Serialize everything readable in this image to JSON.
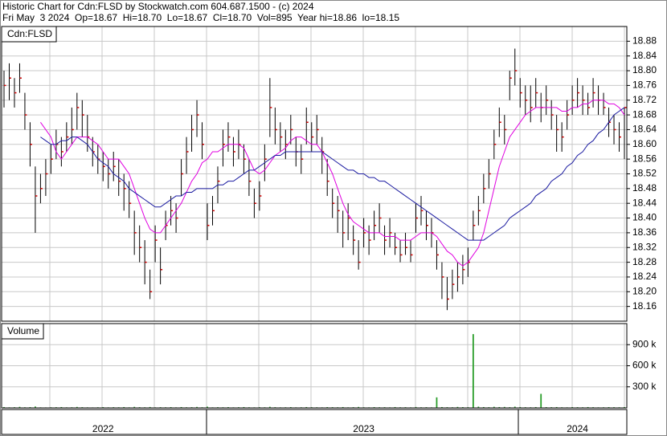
{
  "header": {
    "title": "Historic Chart for Cdn:FLSD by Stockwatch.com 604.687.1500 - (c) 2024",
    "subtitle": "Fri May  3 2024  Op=18.67  Hi=18.70  Lo=18.67  Cl=18.70  Vol=895  Year hi=18.86  lo=18.15"
  },
  "chart_data": [
    {
      "type": "ohlc",
      "title": "Cdn:FLSD",
      "bar_color": "#000000",
      "close_color": "#cc0000",
      "grid": true,
      "ylim": [
        18.12,
        18.92
      ],
      "yticks": [
        18.16,
        {
          "value": 18.2,
          "label": "18.20"
        },
        18.24,
        18.28,
        18.32,
        18.36,
        {
          "value": 18.4,
          "label": "18.40"
        },
        18.44,
        18.48,
        18.52,
        18.56,
        {
          "value": 18.6,
          "label": "18.60"
        },
        18.64,
        18.68,
        18.72,
        18.76,
        {
          "value": 18.8,
          "label": "18.80"
        },
        18.84,
        18.88
      ],
      "high": [
        18.8,
        18.82,
        18.78,
        18.82,
        18.74,
        18.66,
        18.54,
        18.52,
        18.56,
        18.6,
        18.64,
        18.62,
        18.66,
        18.7,
        18.74,
        18.72,
        18.68,
        18.62,
        18.6,
        18.58,
        18.56,
        18.58,
        18.56,
        18.52,
        18.5,
        18.42,
        18.38,
        18.34,
        18.26,
        18.38,
        18.32,
        18.42,
        18.46,
        18.44,
        18.56,
        18.62,
        18.68,
        18.72,
        18.66,
        18.44,
        18.46,
        18.54,
        18.64,
        18.66,
        18.62,
        18.64,
        18.6,
        18.56,
        18.48,
        18.5,
        18.6,
        18.78,
        18.7,
        18.66,
        18.64,
        18.68,
        18.62,
        18.6,
        18.7,
        18.66,
        18.68,
        18.62,
        18.56,
        18.48,
        18.46,
        18.42,
        18.44,
        18.38,
        18.34,
        18.4,
        18.38,
        18.42,
        18.44,
        18.38,
        18.4,
        18.36,
        18.34,
        18.36,
        18.34,
        18.44,
        18.46,
        18.42,
        18.4,
        18.34,
        18.28,
        18.24,
        18.26,
        18.28,
        18.3,
        18.32,
        18.42,
        18.46,
        18.52,
        18.56,
        18.64,
        18.7,
        18.68,
        18.8,
        18.86,
        18.78,
        18.76,
        18.76,
        18.78,
        18.74,
        18.76,
        18.72,
        18.68,
        18.66,
        18.72,
        18.76,
        18.78,
        18.76,
        18.74,
        18.78,
        18.76,
        18.74,
        18.7,
        18.68,
        18.66,
        18.7
      ],
      "low": [
        18.7,
        18.72,
        18.7,
        18.74,
        18.64,
        18.54,
        18.36,
        18.44,
        18.46,
        18.52,
        18.56,
        18.54,
        18.58,
        18.6,
        18.64,
        18.62,
        18.58,
        18.54,
        18.52,
        18.5,
        18.48,
        18.5,
        18.46,
        18.42,
        18.4,
        18.3,
        18.28,
        18.22,
        18.18,
        18.28,
        18.22,
        18.34,
        18.38,
        18.36,
        18.46,
        18.52,
        18.58,
        18.62,
        18.56,
        18.34,
        18.38,
        18.44,
        18.54,
        18.58,
        18.54,
        18.56,
        18.52,
        18.46,
        18.4,
        18.42,
        18.5,
        18.62,
        18.6,
        18.58,
        18.56,
        18.6,
        18.54,
        18.52,
        18.6,
        18.58,
        18.6,
        18.52,
        18.46,
        18.4,
        18.36,
        18.32,
        18.34,
        18.3,
        18.26,
        18.32,
        18.3,
        18.34,
        18.36,
        18.3,
        18.32,
        18.3,
        18.28,
        18.3,
        18.28,
        18.36,
        18.38,
        18.34,
        18.32,
        18.26,
        18.18,
        18.15,
        18.18,
        18.2,
        18.22,
        18.24,
        18.34,
        18.38,
        18.44,
        18.48,
        18.56,
        18.62,
        18.6,
        18.72,
        18.76,
        18.7,
        18.68,
        18.66,
        18.7,
        18.66,
        18.68,
        18.64,
        18.58,
        18.58,
        18.64,
        18.68,
        18.7,
        18.68,
        18.68,
        18.7,
        18.68,
        18.68,
        18.62,
        18.6,
        18.58,
        18.56
      ],
      "close": [
        18.76,
        18.78,
        18.74,
        18.78,
        18.68,
        18.6,
        18.46,
        18.48,
        18.52,
        18.56,
        18.6,
        18.58,
        18.62,
        18.64,
        18.7,
        18.68,
        18.62,
        18.58,
        18.56,
        18.54,
        18.52,
        18.54,
        18.5,
        18.48,
        18.44,
        18.36,
        18.32,
        18.28,
        18.2,
        18.34,
        18.26,
        18.38,
        18.42,
        18.4,
        18.52,
        18.58,
        18.64,
        18.68,
        18.6,
        18.38,
        18.42,
        18.5,
        18.6,
        18.62,
        18.58,
        18.6,
        18.56,
        18.5,
        18.44,
        18.46,
        18.56,
        18.7,
        18.64,
        18.62,
        18.6,
        18.64,
        18.58,
        18.56,
        18.66,
        18.62,
        18.64,
        18.58,
        18.5,
        18.44,
        18.42,
        18.36,
        18.4,
        18.34,
        18.28,
        18.36,
        18.34,
        18.38,
        18.4,
        18.34,
        18.36,
        18.32,
        18.3,
        18.32,
        18.3,
        18.4,
        18.42,
        18.38,
        18.36,
        18.3,
        18.24,
        18.18,
        18.22,
        18.24,
        18.26,
        18.28,
        18.38,
        18.42,
        18.48,
        18.52,
        18.6,
        18.66,
        18.64,
        18.78,
        18.8,
        18.74,
        18.72,
        18.7,
        18.74,
        18.7,
        18.72,
        18.68,
        18.64,
        18.62,
        18.68,
        18.72,
        18.74,
        18.72,
        18.7,
        18.74,
        18.72,
        18.7,
        18.66,
        18.64,
        18.62,
        18.7
      ],
      "lines": [
        {
          "color": "#e000e0",
          "values": [
            null,
            null,
            null,
            null,
            null,
            null,
            null,
            18.66,
            18.64,
            18.62,
            18.58,
            18.56,
            18.58,
            18.6,
            18.62,
            18.62,
            18.62,
            18.61,
            18.6,
            18.58,
            18.56,
            18.56,
            18.56,
            18.54,
            18.52,
            18.48,
            18.44,
            18.4,
            18.37,
            18.36,
            18.36,
            18.38,
            18.4,
            18.42,
            18.44,
            18.47,
            18.5,
            18.52,
            18.55,
            18.56,
            18.58,
            18.58,
            18.59,
            18.6,
            18.6,
            18.6,
            18.59,
            18.56,
            18.53,
            18.52,
            18.53,
            18.55,
            18.57,
            18.58,
            18.59,
            18.61,
            18.62,
            18.62,
            18.61,
            18.6,
            18.6,
            18.58,
            18.55,
            18.52,
            18.48,
            18.44,
            18.41,
            18.39,
            18.38,
            18.37,
            18.36,
            18.36,
            18.36,
            18.35,
            18.35,
            18.35,
            18.34,
            18.34,
            18.34,
            18.35,
            18.36,
            18.36,
            18.36,
            18.35,
            18.33,
            18.31,
            18.3,
            18.28,
            18.27,
            18.28,
            18.3,
            18.32,
            18.36,
            18.42,
            18.48,
            18.54,
            18.58,
            18.62,
            18.64,
            18.66,
            18.68,
            18.69,
            18.7,
            18.7,
            18.7,
            18.7,
            18.7,
            18.69,
            18.69,
            18.7,
            18.7,
            18.71,
            18.71,
            18.72,
            18.72,
            18.72,
            18.71,
            18.71,
            18.7,
            18.68
          ]
        },
        {
          "color": "#1a1aa0",
          "values": [
            null,
            null,
            null,
            null,
            null,
            null,
            null,
            18.62,
            18.61,
            18.6,
            18.6,
            18.61,
            18.61,
            18.62,
            18.62,
            18.61,
            18.6,
            18.58,
            18.56,
            18.55,
            18.54,
            18.52,
            18.51,
            18.5,
            18.48,
            18.47,
            18.46,
            18.45,
            18.44,
            18.43,
            18.43,
            18.44,
            18.45,
            18.46,
            18.46,
            18.47,
            18.47,
            18.48,
            18.48,
            18.48,
            18.48,
            18.49,
            18.49,
            18.5,
            18.5,
            18.51,
            18.52,
            18.53,
            18.53,
            18.54,
            18.55,
            18.56,
            18.57,
            18.57,
            18.58,
            18.58,
            18.58,
            18.58,
            18.58,
            18.58,
            18.58,
            18.58,
            18.57,
            18.56,
            18.55,
            18.54,
            18.53,
            18.53,
            18.52,
            18.52,
            18.51,
            18.51,
            18.5,
            18.5,
            18.49,
            18.48,
            18.47,
            18.46,
            18.45,
            18.44,
            18.43,
            18.42,
            18.41,
            18.4,
            18.39,
            18.38,
            18.37,
            18.36,
            18.35,
            18.34,
            18.34,
            18.34,
            18.34,
            18.35,
            18.36,
            18.37,
            18.38,
            18.4,
            18.41,
            18.42,
            18.43,
            18.44,
            18.46,
            18.47,
            18.48,
            18.5,
            18.51,
            18.52,
            18.54,
            18.55,
            18.57,
            18.58,
            18.6,
            18.61,
            18.63,
            18.64,
            18.66,
            18.68,
            18.69,
            18.7
          ]
        }
      ]
    },
    {
      "type": "bar",
      "title": "Volume",
      "color": "#2a9d2a",
      "ylim": [
        0,
        1200000
      ],
      "yticks": [
        {
          "value": 300000,
          "label": "300 k"
        },
        {
          "value": 600000,
          "label": "600 k"
        },
        {
          "value": 900000,
          "label": "900 k"
        }
      ],
      "categories": [
        null,
        null,
        null,
        null,
        null,
        null,
        null,
        null,
        null,
        null,
        null,
        null,
        null,
        null,
        null,
        null,
        null,
        null,
        null,
        "2022",
        null,
        null,
        null,
        null,
        null,
        null,
        null,
        null,
        null,
        null,
        null,
        null,
        null,
        null,
        null,
        null,
        null,
        null,
        null,
        null,
        null,
        null,
        null,
        null,
        null,
        null,
        null,
        null,
        null,
        null,
        null,
        null,
        null,
        null,
        null,
        null,
        null,
        null,
        null,
        null,
        null,
        null,
        null,
        null,
        null,
        null,
        null,
        null,
        null,
        "2023",
        null,
        null,
        null,
        null,
        null,
        null,
        null,
        null,
        null,
        null,
        null,
        null,
        null,
        null,
        null,
        null,
        null,
        null,
        null,
        null,
        null,
        null,
        null,
        null,
        null,
        null,
        null,
        null,
        null,
        null,
        null,
        null,
        null,
        null,
        null,
        null,
        null,
        null,
        null,
        null,
        "2024",
        null,
        null,
        null,
        null,
        null,
        null,
        null,
        null,
        null
      ],
      "values": [
        12000,
        8000,
        10000,
        15000,
        9000,
        11000,
        20000,
        8000,
        7000,
        9000,
        10000,
        12000,
        8000,
        9000,
        14000,
        10000,
        8000,
        7000,
        9000,
        11000,
        8000,
        10000,
        9000,
        12000,
        8000,
        15000,
        10000,
        9000,
        13000,
        8000,
        10000,
        9000,
        11000,
        8000,
        12000,
        9000,
        10000,
        14000,
        9000,
        18000,
        8000,
        10000,
        9000,
        11000,
        8000,
        10000,
        12000,
        9000,
        8000,
        10000,
        9000,
        16000,
        10000,
        8000,
        9000,
        11000,
        8000,
        9000,
        12000,
        10000,
        9000,
        8000,
        11000,
        10000,
        9000,
        12000,
        8000,
        10000,
        14000,
        9000,
        8000,
        11000,
        9000,
        10000,
        8000,
        12000,
        9000,
        10000,
        8000,
        13000,
        9000,
        10000,
        8000,
        150000,
        12000,
        10000,
        9000,
        14000,
        11000,
        10000,
        1050000,
        18000,
        12000,
        10000,
        16000,
        12000,
        14000,
        10000,
        18000,
        12000,
        10000,
        9000,
        12000,
        200000,
        11000,
        10000,
        12000,
        9000,
        8000,
        11000,
        10000,
        9000,
        12000,
        10000,
        8000,
        9000,
        11000,
        10000,
        9000,
        12000
      ]
    }
  ]
}
